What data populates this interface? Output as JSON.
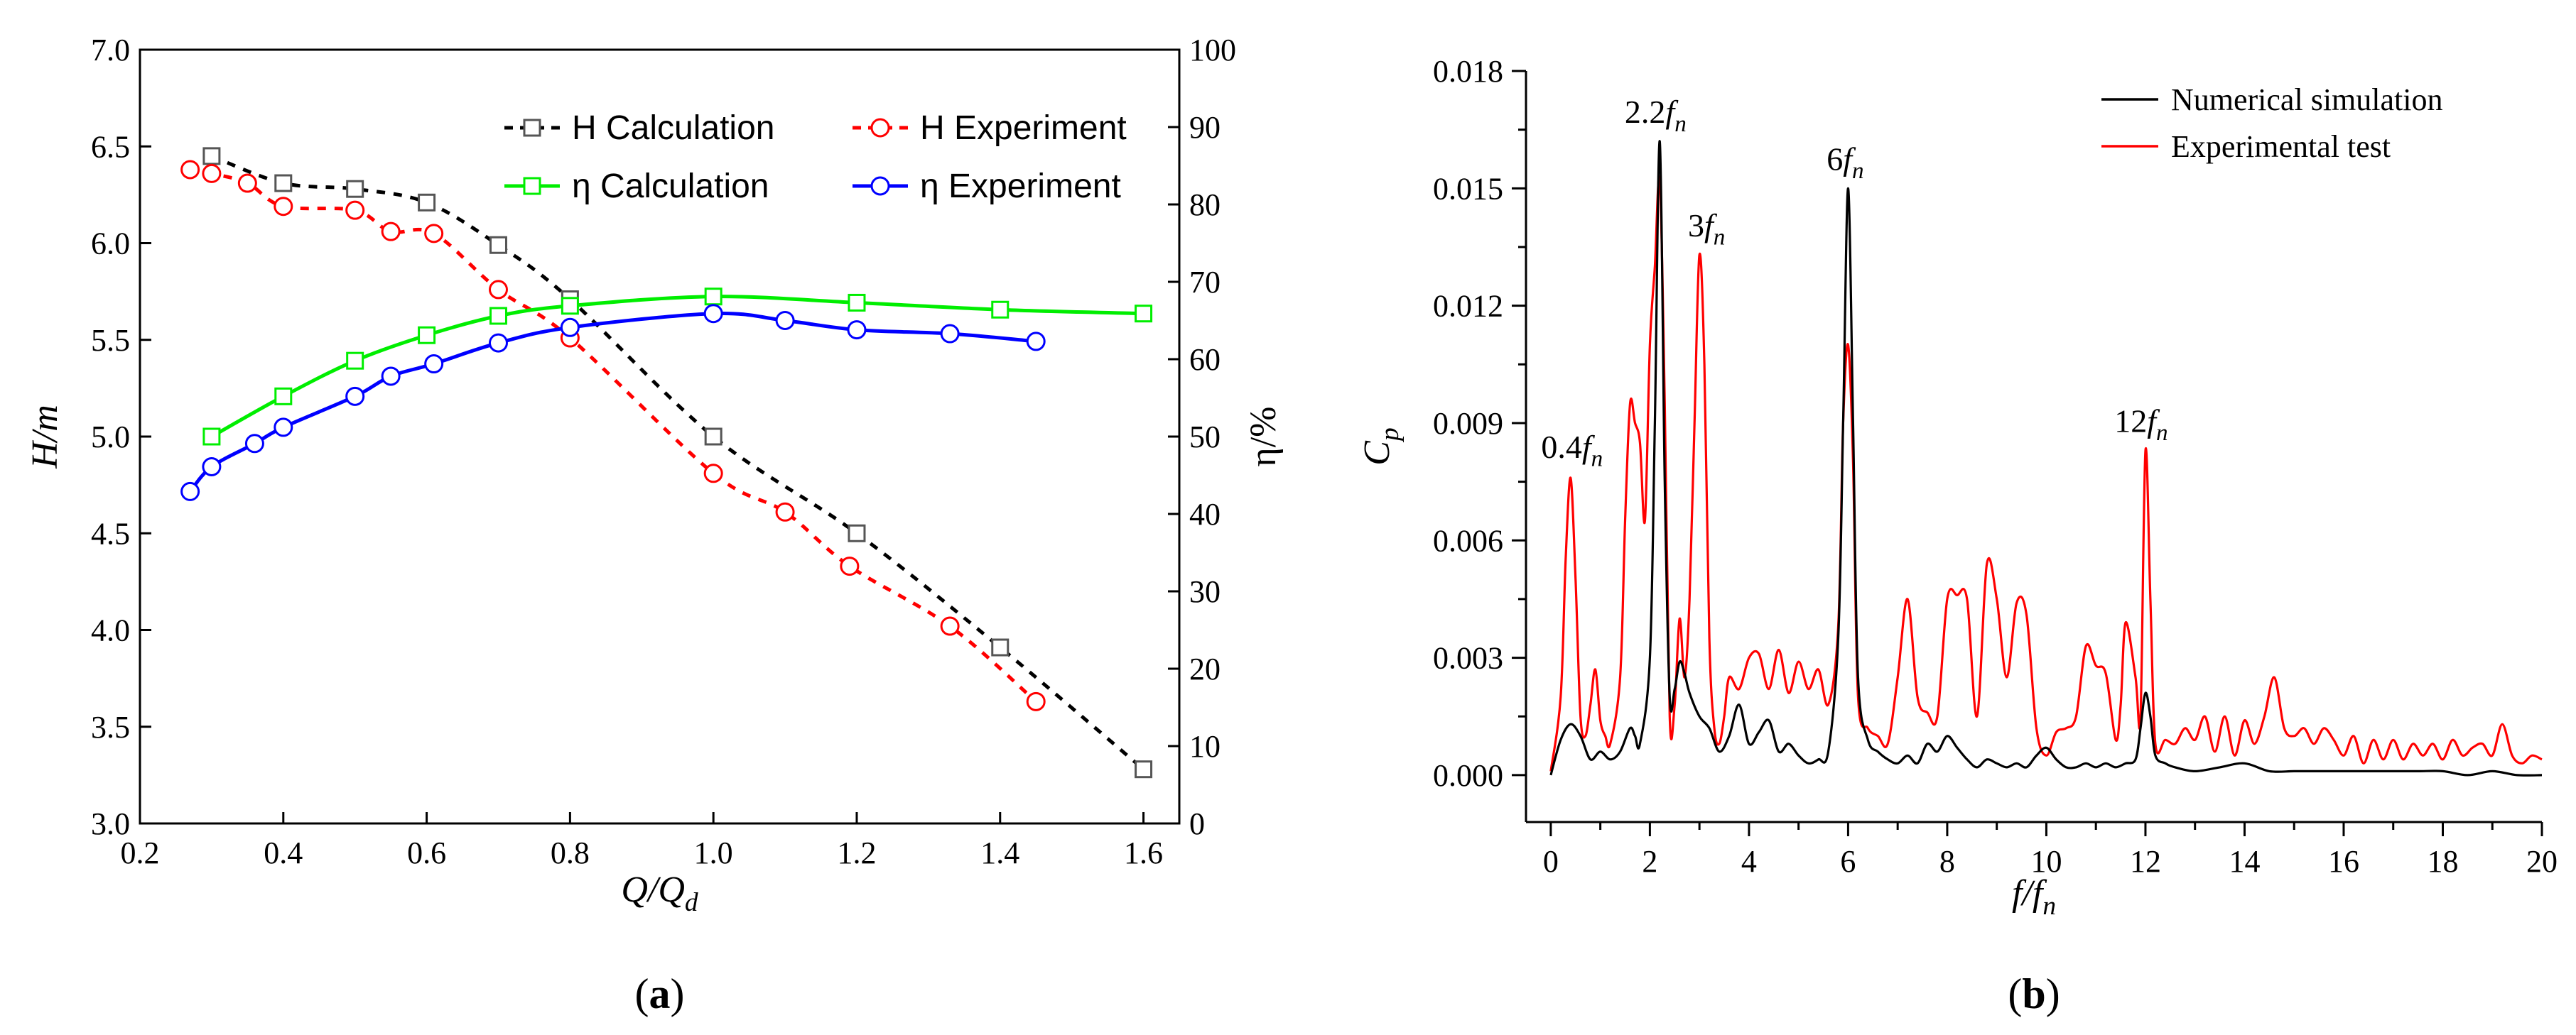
{
  "colors": {
    "h_calc": "#000000",
    "h_exp": "#ff0000",
    "eta_calc": "#00ee00",
    "eta_exp": "#0000ff",
    "num_sim": "#000000",
    "exp_test": "#ff0000"
  },
  "chart_data": [
    {
      "id": "a",
      "panel_label": "(a)",
      "type": "line",
      "xlabel": "Q/Q_d",
      "ylabel_left": "H/m",
      "ylabel_right": "η/%",
      "xlim": [
        0.2,
        1.65
      ],
      "ylim_left": [
        3.0,
        7.0
      ],
      "ylim_right": [
        0,
        100
      ],
      "xticks": [
        "0.2",
        "0.4",
        "0.6",
        "0.8",
        "1.0",
        "1.2",
        "1.4",
        "1.6"
      ],
      "yticks_left": [
        "3.0",
        "3.5",
        "4.0",
        "4.5",
        "5.0",
        "5.5",
        "6.0",
        "6.5",
        "7.0"
      ],
      "yticks_right": [
        "0",
        "10",
        "20",
        "30",
        "40",
        "50",
        "60",
        "70",
        "80",
        "90",
        "100"
      ],
      "legend_position": "top-right",
      "series": [
        {
          "name": "H Calculation",
          "axis": "left",
          "style": "dashed",
          "marker": "square",
          "color": "#000000",
          "x": [
            0.3,
            0.4,
            0.5,
            0.6,
            0.7,
            0.8,
            1.0,
            1.2,
            1.4,
            1.6
          ],
          "y": [
            6.45,
            6.31,
            6.28,
            6.21,
            5.99,
            5.71,
            5.0,
            4.5,
            3.91,
            3.28
          ]
        },
        {
          "name": "H Experiment",
          "axis": "left",
          "style": "dashed",
          "marker": "circle",
          "color": "#ff0000",
          "x": [
            0.27,
            0.3,
            0.35,
            0.4,
            0.5,
            0.55,
            0.61,
            0.7,
            0.8,
            1.0,
            1.1,
            1.19,
            1.33,
            1.45
          ],
          "y": [
            6.38,
            6.36,
            6.31,
            6.19,
            6.17,
            6.06,
            6.05,
            5.76,
            5.51,
            4.81,
            4.61,
            4.33,
            4.02,
            3.63
          ]
        },
        {
          "name": "η Calculation",
          "axis": "right",
          "style": "solid",
          "marker": "square",
          "color": "#00ee00",
          "x": [
            0.3,
            0.4,
            0.5,
            0.6,
            0.7,
            0.8,
            1.0,
            1.2,
            1.4,
            1.6
          ],
          "y": [
            50.0,
            55.2,
            59.8,
            63.1,
            65.6,
            66.9,
            68.1,
            67.3,
            66.4,
            65.9
          ]
        },
        {
          "name": "η Experiment",
          "axis": "right",
          "style": "solid",
          "marker": "circle",
          "color": "#0000ff",
          "x": [
            0.27,
            0.3,
            0.36,
            0.4,
            0.5,
            0.55,
            0.61,
            0.7,
            0.8,
            1.0,
            1.1,
            1.2,
            1.33,
            1.45
          ],
          "y": [
            42.9,
            46.1,
            49.1,
            51.2,
            55.2,
            57.8,
            59.4,
            62.1,
            64.1,
            65.9,
            65.0,
            63.8,
            63.3,
            62.3
          ]
        }
      ]
    },
    {
      "id": "b",
      "panel_label": "(b)",
      "type": "line",
      "xlabel": "f/f_n",
      "ylabel": "C_p",
      "xlim": [
        -0.5,
        20
      ],
      "ylim": [
        -0.0012,
        0.018
      ],
      "xticks": [
        "0",
        "2",
        "4",
        "6",
        "8",
        "10",
        "12",
        "14",
        "16",
        "18",
        "20"
      ],
      "yticks": [
        "0.000",
        "0.003",
        "0.006",
        "0.009",
        "0.012",
        "0.015",
        "0.018"
      ],
      "legend_position": "top-right",
      "annotations": [
        {
          "text": "0.4f_n",
          "x": 0.4,
          "y": 0.0076
        },
        {
          "text": "2.2f_n",
          "x": 2.2,
          "y": 0.0162
        },
        {
          "text": "3f_n",
          "x": 3.0,
          "y": 0.0133
        },
        {
          "text": "6f_n",
          "x": 6.0,
          "y": 0.015
        },
        {
          "text": "12f_n",
          "x": 12.0,
          "y": 0.0083
        }
      ],
      "series": [
        {
          "name": "Numerical simulation",
          "color": "#000000",
          "x": [
            0,
            0.2,
            0.4,
            0.6,
            0.8,
            1.0,
            1.2,
            1.4,
            1.6,
            1.7,
            1.8,
            2.0,
            2.1,
            2.2,
            2.3,
            2.4,
            2.5,
            2.6,
            2.7,
            2.8,
            3.0,
            3.2,
            3.4,
            3.6,
            3.8,
            4.0,
            4.2,
            4.4,
            4.6,
            4.8,
            5.0,
            5.2,
            5.4,
            5.6,
            5.8,
            5.9,
            6.0,
            6.1,
            6.2,
            6.4,
            6.6,
            6.8,
            7.0,
            7.2,
            7.4,
            7.6,
            7.8,
            8.0,
            8.2,
            8.4,
            8.6,
            8.8,
            9.0,
            9.2,
            9.4,
            9.6,
            9.8,
            10.0,
            10.2,
            10.4,
            10.6,
            10.8,
            11.0,
            11.2,
            11.4,
            11.6,
            11.8,
            11.9,
            12.0,
            12.1,
            12.2,
            12.4,
            12.6,
            13.0,
            13.5,
            14.0,
            14.5,
            15.0,
            15.5,
            16.0,
            16.5,
            17.0,
            17.5,
            18.0,
            18.5,
            19.0,
            19.5,
            20.0
          ],
          "y": [
            0.0,
            0.0009,
            0.0013,
            0.001,
            0.0004,
            0.0006,
            0.0004,
            0.0006,
            0.0012,
            0.001,
            0.0008,
            0.003,
            0.009,
            0.0162,
            0.0075,
            0.002,
            0.0022,
            0.0029,
            0.0026,
            0.0021,
            0.0015,
            0.0012,
            0.0006,
            0.001,
            0.0018,
            0.0008,
            0.0011,
            0.0014,
            0.0006,
            0.0008,
            0.0005,
            0.0003,
            0.0004,
            0.0006,
            0.0035,
            0.009,
            0.015,
            0.009,
            0.0025,
            0.0009,
            0.0006,
            0.0004,
            0.0003,
            0.0005,
            0.0003,
            0.0008,
            0.0006,
            0.001,
            0.0007,
            0.0004,
            0.0002,
            0.0004,
            0.0003,
            0.0002,
            0.0003,
            0.0002,
            0.0005,
            0.0007,
            0.0004,
            0.0002,
            0.0002,
            0.0003,
            0.0002,
            0.0003,
            0.0002,
            0.0003,
            0.0004,
            0.0012,
            0.0021,
            0.0015,
            0.0005,
            0.0003,
            0.0002,
            0.0001,
            0.0002,
            0.0003,
            0.0001,
            0.0001,
            0.0001,
            0.0001,
            0.0001,
            0.0001,
            0.0001,
            0.0001,
            0.0,
            0.0001,
            0.0,
            0.0
          ]
        },
        {
          "name": "Experimental test",
          "color": "#ff0000",
          "x": [
            0,
            0.2,
            0.3,
            0.4,
            0.5,
            0.6,
            0.7,
            0.8,
            0.9,
            1.0,
            1.1,
            1.2,
            1.4,
            1.5,
            1.6,
            1.7,
            1.8,
            1.9,
            2.0,
            2.1,
            2.2,
            2.3,
            2.4,
            2.5,
            2.6,
            2.7,
            2.8,
            2.9,
            3.0,
            3.1,
            3.2,
            3.3,
            3.4,
            3.5,
            3.6,
            3.8,
            4.0,
            4.2,
            4.4,
            4.6,
            4.8,
            5.0,
            5.2,
            5.4,
            5.6,
            5.8,
            5.9,
            6.0,
            6.1,
            6.2,
            6.4,
            6.6,
            6.8,
            7.0,
            7.2,
            7.4,
            7.6,
            7.8,
            8.0,
            8.2,
            8.4,
            8.6,
            8.8,
            9.0,
            9.2,
            9.4,
            9.6,
            9.8,
            10.0,
            10.2,
            10.4,
            10.6,
            10.8,
            11.0,
            11.2,
            11.4,
            11.5,
            11.6,
            11.8,
            11.9,
            12.0,
            12.1,
            12.2,
            12.4,
            12.6,
            12.8,
            13.0,
            13.2,
            13.4,
            13.6,
            13.8,
            14.0,
            14.2,
            14.4,
            14.6,
            14.8,
            15.0,
            15.2,
            15.4,
            15.6,
            15.8,
            16.0,
            16.2,
            16.4,
            16.6,
            16.8,
            17.0,
            17.2,
            17.4,
            17.6,
            17.8,
            18.0,
            18.2,
            18.4,
            18.6,
            18.8,
            19.0,
            19.2,
            19.4,
            19.6,
            19.8,
            20.0
          ],
          "y": [
            0.0001,
            0.002,
            0.0055,
            0.0076,
            0.005,
            0.0015,
            0.001,
            0.0018,
            0.0027,
            0.0014,
            0.001,
            0.0008,
            0.0025,
            0.0065,
            0.0095,
            0.009,
            0.0085,
            0.0065,
            0.011,
            0.013,
            0.0152,
            0.0095,
            0.0015,
            0.0018,
            0.004,
            0.0025,
            0.0045,
            0.009,
            0.0133,
            0.0105,
            0.0035,
            0.0012,
            0.0008,
            0.0015,
            0.0025,
            0.0022,
            0.003,
            0.0031,
            0.0022,
            0.0032,
            0.0021,
            0.0029,
            0.0022,
            0.0027,
            0.0018,
            0.0038,
            0.009,
            0.011,
            0.008,
            0.002,
            0.0012,
            0.001,
            0.0008,
            0.0025,
            0.0045,
            0.002,
            0.0016,
            0.0015,
            0.0045,
            0.0046,
            0.0045,
            0.0015,
            0.0054,
            0.0045,
            0.0025,
            0.0044,
            0.0041,
            0.0012,
            0.0005,
            0.0011,
            0.0012,
            0.0015,
            0.0033,
            0.0028,
            0.0026,
            0.0009,
            0.0018,
            0.0039,
            0.0025,
            0.0015,
            0.0083,
            0.0045,
            0.0008,
            0.0009,
            0.0008,
            0.0012,
            0.0009,
            0.0015,
            0.0006,
            0.0015,
            0.0005,
            0.0014,
            0.0008,
            0.0015,
            0.0025,
            0.0012,
            0.001,
            0.0012,
            0.0008,
            0.0012,
            0.0009,
            0.0005,
            0.001,
            0.0003,
            0.0009,
            0.0004,
            0.0009,
            0.0004,
            0.0008,
            0.0005,
            0.0008,
            0.0004,
            0.0009,
            0.0005,
            0.0007,
            0.0008,
            0.0005,
            0.0013,
            0.0005,
            0.0003,
            0.0005,
            0.0004
          ]
        }
      ]
    }
  ]
}
